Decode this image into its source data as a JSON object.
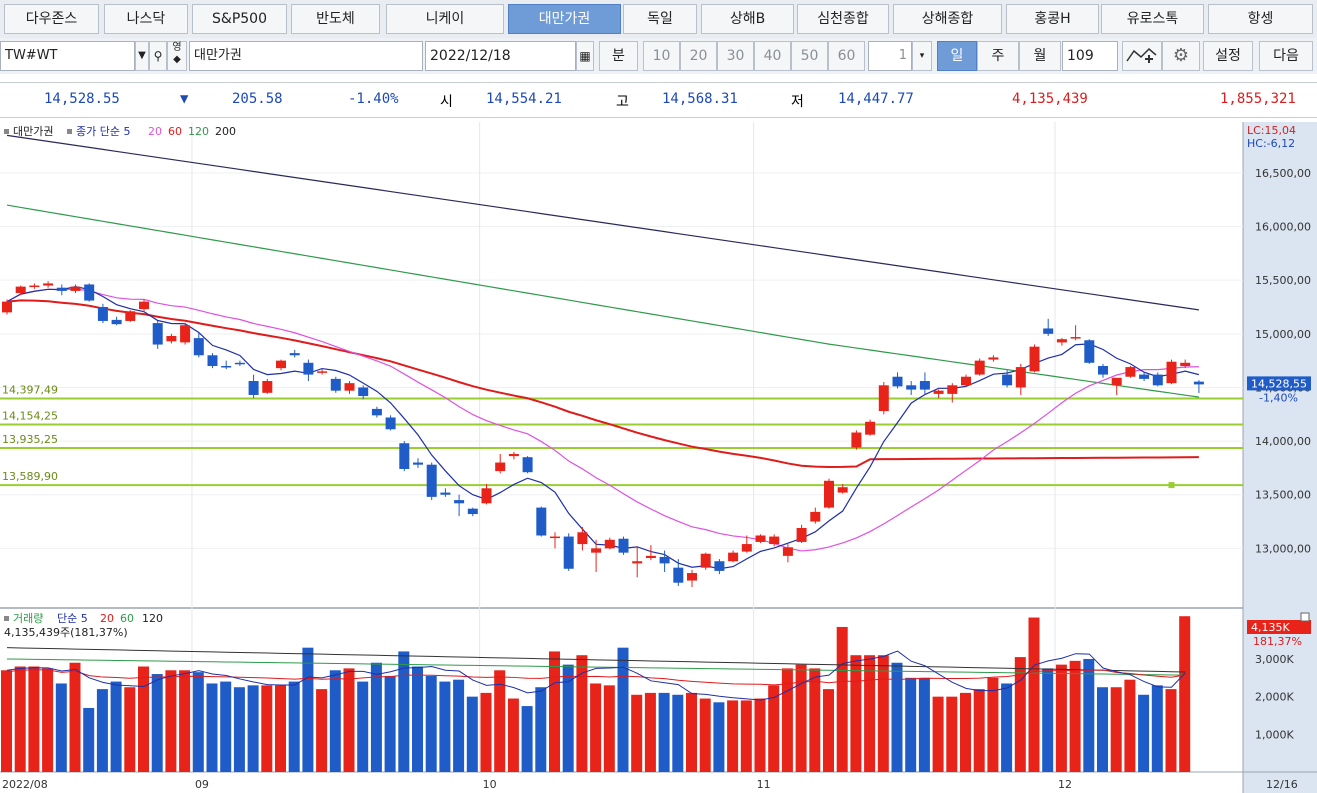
{
  "tabs": [
    "다우존스",
    "나스닥",
    "S&P500",
    "반도체",
    "니케이",
    "대만가권",
    "독일",
    "상해B",
    "심천종합",
    "상해종합",
    "홍콩H",
    "유로스톡",
    "항셍"
  ],
  "active_tab": "대만가권",
  "toolbar": {
    "code": "TW#WT",
    "name": "대만가권",
    "date": "2022/12/18",
    "unit_label": "분",
    "minute_options": [
      "10",
      "20",
      "30",
      "40",
      "50",
      "60"
    ],
    "period_value": "1",
    "day_label": "일",
    "week_label": "주",
    "month_label": "월",
    "count_value": "109",
    "settings_label": "설정",
    "next_label": "다음",
    "search_icon": "search-icon",
    "tool_icon": "gear-icon"
  },
  "quote": {
    "price": "14,528.55",
    "change_arrow": "▼",
    "change": "205.58",
    "change_pct": "-1.40%",
    "open_label": "시",
    "open": "14,554.21",
    "high_label": "고",
    "high": "14,568.31",
    "low_label": "저",
    "low": "14,447.77",
    "volume": "4,135,439",
    "amount": "1,855,321"
  },
  "price_panel": {
    "legend": [
      "대만가권",
      "종가 단순 5",
      "20",
      "60",
      "120",
      "200"
    ],
    "lc": "LC:15,04",
    "hc": "HC:-6,12",
    "y_ticks": [
      "16,500,00",
      "16,000,00",
      "15,500,00",
      "15,000,00",
      "14,500,00",
      "14,000,00",
      "13,500,00",
      "13,000,00"
    ],
    "h_lines": [
      {
        "label": "14,397,49",
        "value": 14397.49
      },
      {
        "label": "14,154,25",
        "value": 14154.25
      },
      {
        "label": "13,935,25",
        "value": 13935.25
      },
      {
        "label": "13,589,90",
        "value": 13589.9
      }
    ],
    "last_price_label": "14,528,55",
    "last_change_label": "-1,40%"
  },
  "volume_panel": {
    "legend": [
      "거래량",
      "단순 5",
      "20",
      "60",
      "120"
    ],
    "info": "4,135,439주(181,37%)",
    "last_label": "4,135K",
    "last_pct": "181,37%",
    "y_ticks": [
      "3,000K",
      "2,000K",
      "1,000K"
    ]
  },
  "x_axis": [
    "2022/08",
    "09",
    "10",
    "11",
    "12",
    "12/16"
  ],
  "colors": {
    "up": "#e8231a",
    "down": "#1f5cc8",
    "ma5": "#1f2fa8",
    "ma20": "#e050e0",
    "ma60": "#e01b1b",
    "ma120": "#2e9a4a",
    "ma200": "#2a2a5a",
    "hline": "#9acd32"
  },
  "chart_data": {
    "type": "candlestick",
    "candles": [
      {
        "o": 15200,
        "h": 15320,
        "l": 15180,
        "c": 15300
      },
      {
        "o": 15380,
        "h": 15450,
        "l": 15360,
        "c": 15440
      },
      {
        "o": 15440,
        "h": 15470,
        "l": 15420,
        "c": 15450
      },
      {
        "o": 15450,
        "h": 15490,
        "l": 15430,
        "c": 15470
      },
      {
        "o": 15430,
        "h": 15460,
        "l": 15360,
        "c": 15400
      },
      {
        "o": 15400,
        "h": 15460,
        "l": 15380,
        "c": 15440
      },
      {
        "o": 15460,
        "h": 15470,
        "l": 15300,
        "c": 15310
      },
      {
        "o": 15250,
        "h": 15280,
        "l": 15100,
        "c": 15120
      },
      {
        "o": 15130,
        "h": 15160,
        "l": 15080,
        "c": 15090
      },
      {
        "o": 15120,
        "h": 15220,
        "l": 15110,
        "c": 15210
      },
      {
        "o": 15230,
        "h": 15320,
        "l": 15200,
        "c": 15300
      },
      {
        "o": 15100,
        "h": 15120,
        "l": 14860,
        "c": 14900
      },
      {
        "o": 14930,
        "h": 15000,
        "l": 14910,
        "c": 14980
      },
      {
        "o": 14920,
        "h": 15100,
        "l": 14900,
        "c": 15080
      },
      {
        "o": 14960,
        "h": 15010,
        "l": 14780,
        "c": 14800
      },
      {
        "o": 14800,
        "h": 14820,
        "l": 14680,
        "c": 14700
      },
      {
        "o": 14700,
        "h": 14750,
        "l": 14670,
        "c": 14690
      },
      {
        "o": 14730,
        "h": 14750,
        "l": 14700,
        "c": 14720
      },
      {
        "o": 14560,
        "h": 14620,
        "l": 14400,
        "c": 14430
      },
      {
        "o": 14450,
        "h": 14580,
        "l": 14440,
        "c": 14560
      },
      {
        "o": 14680,
        "h": 14760,
        "l": 14660,
        "c": 14750
      },
      {
        "o": 14820,
        "h": 14850,
        "l": 14780,
        "c": 14800
      },
      {
        "o": 14730,
        "h": 14760,
        "l": 14560,
        "c": 14620
      },
      {
        "o": 14640,
        "h": 14670,
        "l": 14620,
        "c": 14650
      },
      {
        "o": 14580,
        "h": 14600,
        "l": 14450,
        "c": 14470
      },
      {
        "o": 14470,
        "h": 14560,
        "l": 14440,
        "c": 14540
      },
      {
        "o": 14500,
        "h": 14520,
        "l": 14390,
        "c": 14420
      },
      {
        "o": 14300,
        "h": 14320,
        "l": 14220,
        "c": 14240
      },
      {
        "o": 14220,
        "h": 14240,
        "l": 14100,
        "c": 14110
      },
      {
        "o": 13980,
        "h": 14000,
        "l": 13720,
        "c": 13740
      },
      {
        "o": 13800,
        "h": 13840,
        "l": 13750,
        "c": 13780
      },
      {
        "o": 13780,
        "h": 13800,
        "l": 13450,
        "c": 13480
      },
      {
        "o": 13520,
        "h": 13560,
        "l": 13480,
        "c": 13500
      },
      {
        "o": 13450,
        "h": 13500,
        "l": 13300,
        "c": 13420
      },
      {
        "o": 13370,
        "h": 13380,
        "l": 13300,
        "c": 13320
      },
      {
        "o": 13420,
        "h": 13600,
        "l": 13410,
        "c": 13560
      },
      {
        "o": 13720,
        "h": 13880,
        "l": 13700,
        "c": 13800
      },
      {
        "o": 13860,
        "h": 13900,
        "l": 13830,
        "c": 13880
      },
      {
        "o": 13850,
        "h": 13860,
        "l": 13700,
        "c": 13710
      },
      {
        "o": 13380,
        "h": 13390,
        "l": 13110,
        "c": 13120
      },
      {
        "o": 13100,
        "h": 13150,
        "l": 13000,
        "c": 13110
      },
      {
        "o": 13110,
        "h": 13140,
        "l": 12790,
        "c": 12810
      },
      {
        "o": 13040,
        "h": 13200,
        "l": 12980,
        "c": 13150
      },
      {
        "o": 12960,
        "h": 13080,
        "l": 12780,
        "c": 13000
      },
      {
        "o": 13000,
        "h": 13100,
        "l": 12990,
        "c": 13080
      },
      {
        "o": 13090,
        "h": 13110,
        "l": 12940,
        "c": 12960
      },
      {
        "o": 12860,
        "h": 13020,
        "l": 12730,
        "c": 12880
      },
      {
        "o": 12910,
        "h": 13030,
        "l": 12890,
        "c": 12930
      },
      {
        "o": 12920,
        "h": 12980,
        "l": 12780,
        "c": 12860
      },
      {
        "o": 12820,
        "h": 12900,
        "l": 12650,
        "c": 12680
      },
      {
        "o": 12700,
        "h": 12800,
        "l": 12640,
        "c": 12770
      },
      {
        "o": 12820,
        "h": 12960,
        "l": 12800,
        "c": 12950
      },
      {
        "o": 12880,
        "h": 12900,
        "l": 12760,
        "c": 12790
      },
      {
        "o": 12880,
        "h": 12980,
        "l": 12870,
        "c": 12960
      },
      {
        "o": 12970,
        "h": 13120,
        "l": 12960,
        "c": 13040
      },
      {
        "o": 13060,
        "h": 13130,
        "l": 13050,
        "c": 13120
      },
      {
        "o": 13040,
        "h": 13130,
        "l": 13020,
        "c": 13110
      },
      {
        "o": 12930,
        "h": 13040,
        "l": 12870,
        "c": 13010
      },
      {
        "o": 13060,
        "h": 13220,
        "l": 13050,
        "c": 13190
      },
      {
        "o": 13250,
        "h": 13380,
        "l": 13230,
        "c": 13340
      },
      {
        "o": 13380,
        "h": 13650,
        "l": 13370,
        "c": 13630
      },
      {
        "o": 13520,
        "h": 13600,
        "l": 13510,
        "c": 13570
      },
      {
        "o": 13940,
        "h": 14100,
        "l": 13920,
        "c": 14080
      },
      {
        "o": 14060,
        "h": 14200,
        "l": 14050,
        "c": 14180
      },
      {
        "o": 14280,
        "h": 14550,
        "l": 14250,
        "c": 14520
      },
      {
        "o": 14600,
        "h": 14640,
        "l": 14490,
        "c": 14510
      },
      {
        "o": 14520,
        "h": 14560,
        "l": 14430,
        "c": 14480
      },
      {
        "o": 14560,
        "h": 14640,
        "l": 14440,
        "c": 14480
      },
      {
        "o": 14440,
        "h": 14480,
        "l": 14400,
        "c": 14470
      },
      {
        "o": 14440,
        "h": 14540,
        "l": 14360,
        "c": 14520
      },
      {
        "o": 14520,
        "h": 14620,
        "l": 14510,
        "c": 14600
      },
      {
        "o": 14620,
        "h": 14770,
        "l": 14610,
        "c": 14750
      },
      {
        "o": 14760,
        "h": 14800,
        "l": 14740,
        "c": 14780
      },
      {
        "o": 14620,
        "h": 14660,
        "l": 14500,
        "c": 14520
      },
      {
        "o": 14500,
        "h": 14720,
        "l": 14430,
        "c": 14690
      },
      {
        "o": 14650,
        "h": 14900,
        "l": 14640,
        "c": 14880
      },
      {
        "o": 15050,
        "h": 15140,
        "l": 14980,
        "c": 15000
      },
      {
        "o": 14920,
        "h": 14960,
        "l": 14890,
        "c": 14950
      },
      {
        "o": 14960,
        "h": 15080,
        "l": 14940,
        "c": 14970
      },
      {
        "o": 14940,
        "h": 14950,
        "l": 14720,
        "c": 14730
      },
      {
        "o": 14700,
        "h": 14720,
        "l": 14590,
        "c": 14620
      },
      {
        "o": 14520,
        "h": 14560,
        "l": 14430,
        "c": 14590
      },
      {
        "o": 14600,
        "h": 14700,
        "l": 14590,
        "c": 14690
      },
      {
        "o": 14620,
        "h": 14640,
        "l": 14560,
        "c": 14580
      },
      {
        "o": 14620,
        "h": 14640,
        "l": 14510,
        "c": 14520
      },
      {
        "o": 14540,
        "h": 14760,
        "l": 14530,
        "c": 14740
      },
      {
        "o": 14700,
        "h": 14760,
        "l": 14680,
        "c": 14730
      },
      {
        "o": 14554.21,
        "h": 14568.31,
        "l": 14447.77,
        "c": 14528.55
      }
    ],
    "volumes": [
      2700,
      2800,
      2800,
      2750,
      2350,
      2900,
      1700,
      2200,
      2400,
      2250,
      2800,
      2600,
      2700,
      2700,
      2650,
      2350,
      2400,
      2250,
      2300,
      2300,
      2300,
      2400,
      3300,
      2200,
      2700,
      2750,
      2400,
      2900,
      2550,
      3200,
      2800,
      2550,
      2400,
      2450,
      2000,
      2100,
      2700,
      1950,
      1750,
      2250,
      3200,
      2850,
      3100,
      2350,
      2300,
      3300,
      2050,
      2100,
      2100,
      2050,
      2100,
      1950,
      1850,
      1900,
      1900,
      1950,
      2300,
      2750,
      2850,
      2750,
      2200,
      3850,
      3100,
      3100,
      3100,
      2900,
      2500,
      2500,
      2000,
      2000,
      2100,
      2200,
      2500,
      2350,
      3050,
      4100,
      2750,
      2850,
      2950,
      3000,
      2250,
      2250,
      2450,
      2050,
      2300,
      2200,
      4135
    ],
    "ylim": [
      12500,
      16900
    ],
    "volume_ylim": [
      0,
      4300
    ]
  }
}
